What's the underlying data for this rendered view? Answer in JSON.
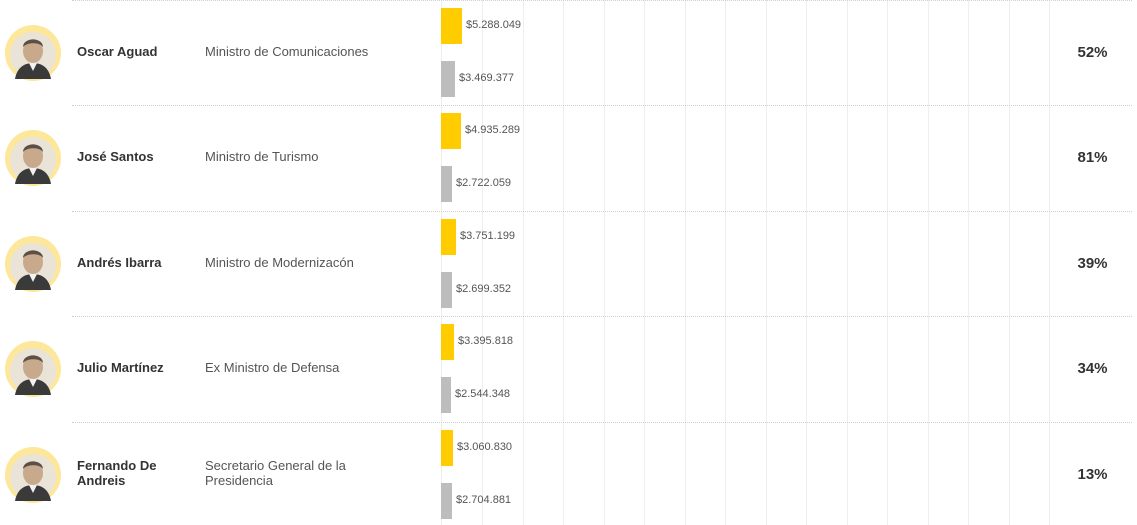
{
  "colors": {
    "current_bar": "#ffcc00",
    "previous_bar": "#bdbdbd",
    "avatar_ring": "#fde79a",
    "text": "#333333",
    "grid": "#eeeeee"
  },
  "rows": [
    {
      "name": "Oscar Aguad",
      "role": "Ministro de Comunicaciones",
      "current_label": "$5.288.049",
      "previous_label": "$3.469.377",
      "percent": "52%"
    },
    {
      "name": "José Santos",
      "role": "Ministro de Turismo",
      "current_label": "$4.935.289",
      "previous_label": "$2.722.059",
      "percent": "81%"
    },
    {
      "name": "Andrés Ibarra",
      "role": "Ministro de Modernizacón",
      "current_label": "$3.751.199",
      "previous_label": "$2.699.352",
      "percent": "39%"
    },
    {
      "name": "Julio Martínez",
      "role": "Ex Ministro de Defensa",
      "current_label": "$3.395.818",
      "previous_label": "$2.544.348",
      "percent": "34%"
    },
    {
      "name": "Fernando De Andreis",
      "role": "Secretario General de la Presidencia",
      "current_label": "$3.060.830",
      "previous_label": "$2.704.881",
      "percent": "13%"
    }
  ],
  "chart_data": {
    "type": "bar",
    "categories": [
      "Oscar Aguad",
      "José Santos",
      "Andrés Ibarra",
      "Julio Martínez",
      "Fernando De Andreis"
    ],
    "series": [
      {
        "values": [
          5288049,
          4935289,
          3751199,
          3395818,
          3060830
        ]
      },
      {
        "values": [
          3469377,
          2722059,
          2699352,
          2544348,
          2704881
        ]
      }
    ],
    "percent_change": [
      52,
      81,
      39,
      34,
      13
    ],
    "xlim": [
      0,
      170000000
    ],
    "grid": true
  }
}
